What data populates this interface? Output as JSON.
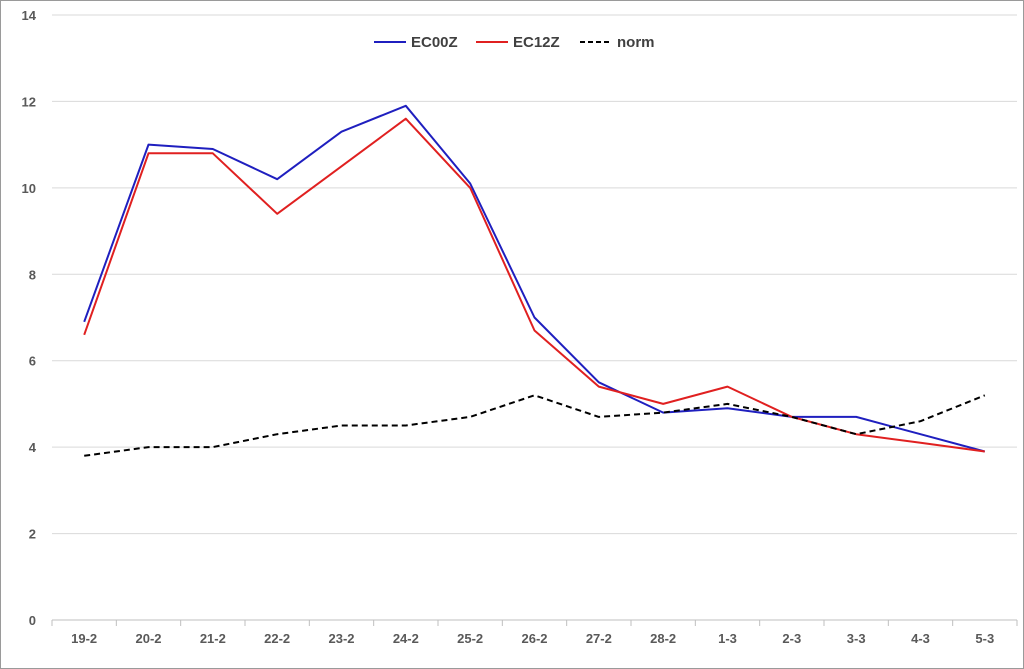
{
  "chart_data": {
    "type": "line",
    "title": "",
    "xlabel": "",
    "ylabel": "",
    "categories": [
      "19-2",
      "20-2",
      "21-2",
      "22-2",
      "23-2",
      "24-2",
      "25-2",
      "26-2",
      "27-2",
      "28-2",
      "1-3",
      "2-3",
      "3-3",
      "4-3",
      "5-3"
    ],
    "ylim": [
      0,
      14
    ],
    "yticks": [
      0,
      2,
      4,
      6,
      8,
      10,
      12,
      14
    ],
    "grid": true,
    "legend_position": "top-center",
    "series": [
      {
        "name": "EC00Z",
        "color": "#1f1fbf",
        "dash": "solid",
        "values": [
          6.9,
          11.0,
          10.9,
          10.2,
          11.3,
          11.9,
          10.1,
          7.0,
          5.5,
          4.8,
          4.9,
          4.7,
          4.7,
          4.3,
          3.9
        ]
      },
      {
        "name": "EC12Z",
        "color": "#e02020",
        "dash": "solid",
        "values": [
          6.6,
          10.8,
          10.8,
          9.4,
          10.5,
          11.6,
          10.0,
          6.7,
          5.4,
          5.0,
          5.4,
          4.7,
          4.3,
          4.1,
          3.9
        ]
      },
      {
        "name": "norm",
        "color": "#000000",
        "dash": "dashed",
        "values": [
          3.8,
          4.0,
          4.0,
          4.3,
          4.5,
          4.5,
          4.7,
          5.2,
          4.7,
          4.8,
          5.0,
          4.7,
          4.3,
          4.6,
          5.2
        ]
      }
    ]
  }
}
